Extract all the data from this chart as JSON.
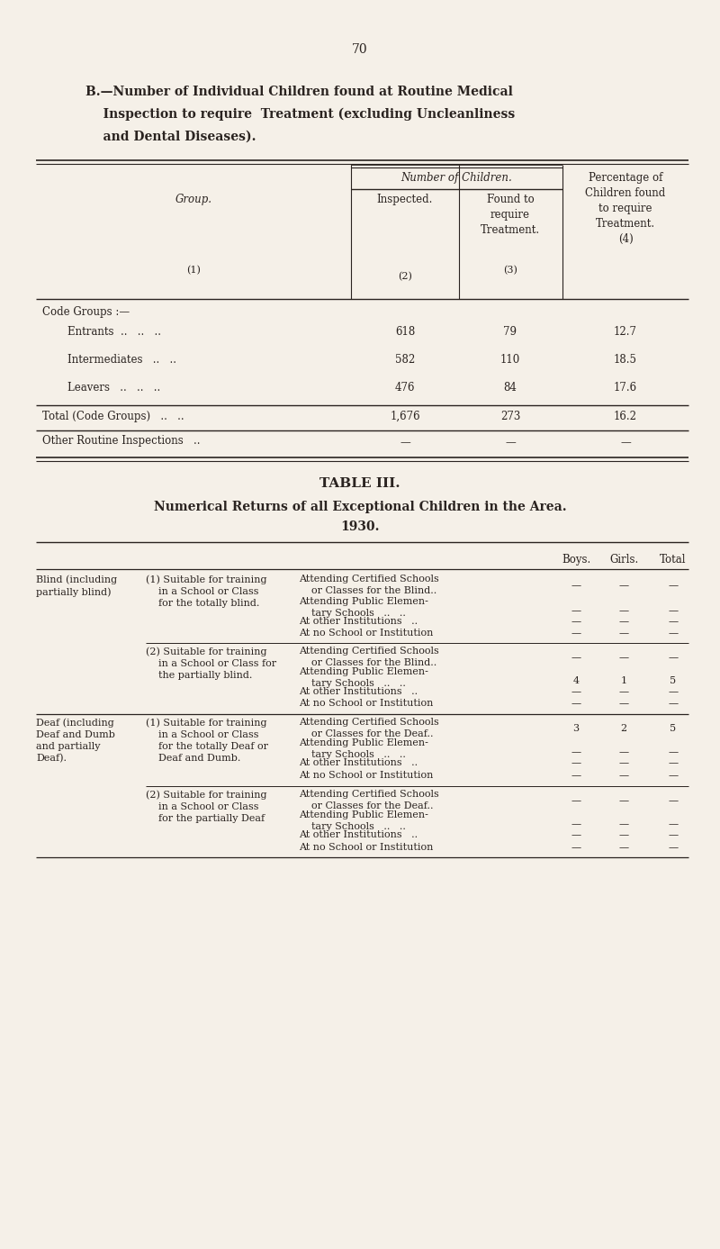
{
  "bg_color": "#f5f0e8",
  "text_color": "#2a2320",
  "page_number": "70",
  "title_lines": [
    "B.—Number of Individual Children found at Routine Medical",
    "    Inspection to require  Treatment (excluding Uncleanliness",
    "    and Dental Diseases)."
  ],
  "table3_title": "TABLE III.",
  "table3_subtitle": "Numerical Returns of all Exceptional Children in the Area.",
  "table3_year": "1930.",
  "col_boys": "Boys.",
  "col_girls": "Girls.",
  "col_total": "Total"
}
